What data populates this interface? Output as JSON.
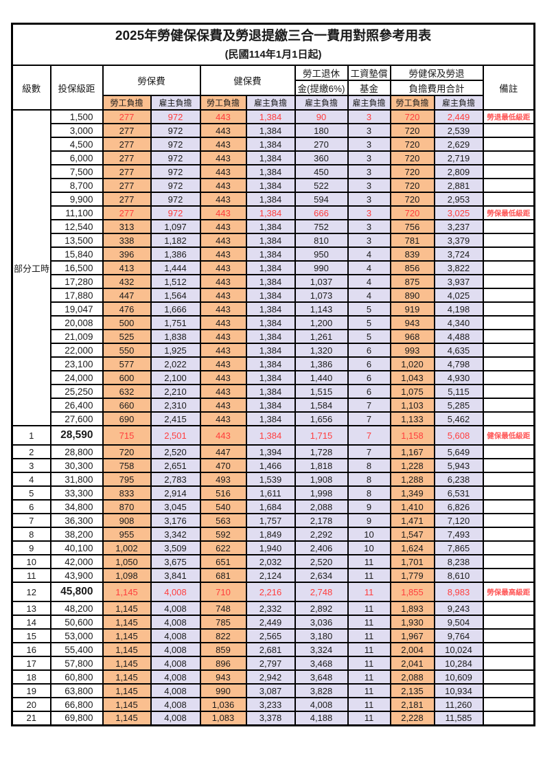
{
  "title": "2025年勞健保保費及勞退提繳三合一費用對照參考用表",
  "subtitle": "(民國114年1月1日起)",
  "header": {
    "level": "級數",
    "bracket": "投保級距",
    "labor_insurance": "勞保費",
    "health_insurance": "健保費",
    "pension_line1": "勞工退休",
    "pension_line2": "金(提繳6%)",
    "wage_fund_line1": "工資墊償",
    "wage_fund_line2": "基金",
    "total_line1": "勞健保及勞退",
    "total_line2": "負擔費用合計",
    "remark": "備註",
    "worker": "勞工負擔",
    "employer": "雇主負擔"
  },
  "part_time_label": "部分工時",
  "colors": {
    "worker_bg": "#FABF8F",
    "employer_bg": "#E0DDF1",
    "value_red": "#FF3D3D",
    "remark_red": "#FF5656",
    "border": "#000000"
  },
  "rows": [
    {
      "section": "part_time",
      "bracket": "1,500",
      "cells": [
        "277",
        "972",
        "443",
        "1,384",
        "90",
        "3",
        "720",
        "2,449"
      ],
      "remark": "勞退最低級距",
      "highlight": true
    },
    {
      "section": "part_time",
      "bracket": "3,000",
      "cells": [
        "277",
        "972",
        "443",
        "1,384",
        "180",
        "3",
        "720",
        "2,539"
      ],
      "remark": ""
    },
    {
      "section": "part_time",
      "bracket": "4,500",
      "cells": [
        "277",
        "972",
        "443",
        "1,384",
        "270",
        "3",
        "720",
        "2,629"
      ],
      "remark": ""
    },
    {
      "section": "part_time",
      "bracket": "6,000",
      "cells": [
        "277",
        "972",
        "443",
        "1,384",
        "360",
        "3",
        "720",
        "2,719"
      ],
      "remark": ""
    },
    {
      "section": "part_time",
      "bracket": "7,500",
      "cells": [
        "277",
        "972",
        "443",
        "1,384",
        "450",
        "3",
        "720",
        "2,809"
      ],
      "remark": ""
    },
    {
      "section": "part_time",
      "bracket": "8,700",
      "cells": [
        "277",
        "972",
        "443",
        "1,384",
        "522",
        "3",
        "720",
        "2,881"
      ],
      "remark": ""
    },
    {
      "section": "part_time",
      "bracket": "9,900",
      "cells": [
        "277",
        "972",
        "443",
        "1,384",
        "594",
        "3",
        "720",
        "2,953"
      ],
      "remark": ""
    },
    {
      "section": "part_time",
      "bracket": "11,100",
      "cells": [
        "277",
        "972",
        "443",
        "1,384",
        "666",
        "3",
        "720",
        "3,025"
      ],
      "remark": "勞保最低級距",
      "highlight": true
    },
    {
      "section": "part_time",
      "bracket": "12,540",
      "cells": [
        "313",
        "1,097",
        "443",
        "1,384",
        "752",
        "3",
        "756",
        "3,237"
      ],
      "remark": ""
    },
    {
      "section": "part_time",
      "bracket": "13,500",
      "cells": [
        "338",
        "1,182",
        "443",
        "1,384",
        "810",
        "3",
        "781",
        "3,379"
      ],
      "remark": ""
    },
    {
      "section": "part_time",
      "bracket": "15,840",
      "cells": [
        "396",
        "1,386",
        "443",
        "1,384",
        "950",
        "4",
        "839",
        "3,724"
      ],
      "remark": ""
    },
    {
      "section": "part_time",
      "bracket": "16,500",
      "cells": [
        "413",
        "1,444",
        "443",
        "1,384",
        "990",
        "4",
        "856",
        "3,822"
      ],
      "remark": ""
    },
    {
      "section": "part_time",
      "bracket": "17,280",
      "cells": [
        "432",
        "1,512",
        "443",
        "1,384",
        "1,037",
        "4",
        "875",
        "3,937"
      ],
      "remark": ""
    },
    {
      "section": "part_time",
      "bracket": "17,880",
      "cells": [
        "447",
        "1,564",
        "443",
        "1,384",
        "1,073",
        "4",
        "890",
        "4,025"
      ],
      "remark": ""
    },
    {
      "section": "part_time",
      "bracket": "19,047",
      "cells": [
        "476",
        "1,666",
        "443",
        "1,384",
        "1,143",
        "5",
        "919",
        "4,198"
      ],
      "remark": ""
    },
    {
      "section": "part_time",
      "bracket": "20,008",
      "cells": [
        "500",
        "1,751",
        "443",
        "1,384",
        "1,200",
        "5",
        "943",
        "4,340"
      ],
      "remark": ""
    },
    {
      "section": "part_time",
      "bracket": "21,009",
      "cells": [
        "525",
        "1,838",
        "443",
        "1,384",
        "1,261",
        "5",
        "968",
        "4,488"
      ],
      "remark": ""
    },
    {
      "section": "part_time",
      "bracket": "22,000",
      "cells": [
        "550",
        "1,925",
        "443",
        "1,384",
        "1,320",
        "6",
        "993",
        "4,635"
      ],
      "remark": ""
    },
    {
      "section": "part_time",
      "bracket": "23,100",
      "cells": [
        "577",
        "2,022",
        "443",
        "1,384",
        "1,386",
        "6",
        "1,020",
        "4,798"
      ],
      "remark": ""
    },
    {
      "section": "part_time",
      "bracket": "24,000",
      "cells": [
        "600",
        "2,100",
        "443",
        "1,384",
        "1,440",
        "6",
        "1,043",
        "4,930"
      ],
      "remark": ""
    },
    {
      "section": "part_time",
      "bracket": "25,250",
      "cells": [
        "632",
        "2,210",
        "443",
        "1,384",
        "1,515",
        "6",
        "1,075",
        "5,115"
      ],
      "remark": ""
    },
    {
      "section": "part_time",
      "bracket": "26,400",
      "cells": [
        "660",
        "2,310",
        "443",
        "1,384",
        "1,584",
        "7",
        "1,103",
        "5,285"
      ],
      "remark": ""
    },
    {
      "section": "part_time",
      "bracket": "27,600",
      "cells": [
        "690",
        "2,415",
        "443",
        "1,384",
        "1,656",
        "7",
        "1,133",
        "5,462"
      ],
      "remark": ""
    },
    {
      "level": "1",
      "bracket": "28,590",
      "cells": [
        "715",
        "2,501",
        "443",
        "1,384",
        "1,715",
        "7",
        "1,158",
        "5,608"
      ],
      "remark": "健保最低級距",
      "highlight": true,
      "bold": true
    },
    {
      "level": "2",
      "bracket": "28,800",
      "cells": [
        "720",
        "2,520",
        "447",
        "1,394",
        "1,728",
        "7",
        "1,167",
        "5,649"
      ],
      "remark": ""
    },
    {
      "level": "3",
      "bracket": "30,300",
      "cells": [
        "758",
        "2,651",
        "470",
        "1,466",
        "1,818",
        "8",
        "1,228",
        "5,943"
      ],
      "remark": ""
    },
    {
      "level": "4",
      "bracket": "31,800",
      "cells": [
        "795",
        "2,783",
        "493",
        "1,539",
        "1,908",
        "8",
        "1,288",
        "6,238"
      ],
      "remark": ""
    },
    {
      "level": "5",
      "bracket": "33,300",
      "cells": [
        "833",
        "2,914",
        "516",
        "1,611",
        "1,998",
        "8",
        "1,349",
        "6,531"
      ],
      "remark": ""
    },
    {
      "level": "6",
      "bracket": "34,800",
      "cells": [
        "870",
        "3,045",
        "540",
        "1,684",
        "2,088",
        "9",
        "1,410",
        "6,826"
      ],
      "remark": ""
    },
    {
      "level": "7",
      "bracket": "36,300",
      "cells": [
        "908",
        "3,176",
        "563",
        "1,757",
        "2,178",
        "9",
        "1,471",
        "7,120"
      ],
      "remark": ""
    },
    {
      "level": "8",
      "bracket": "38,200",
      "cells": [
        "955",
        "3,342",
        "592",
        "1,849",
        "2,292",
        "10",
        "1,547",
        "7,493"
      ],
      "remark": ""
    },
    {
      "level": "9",
      "bracket": "40,100",
      "cells": [
        "1,002",
        "3,509",
        "622",
        "1,940",
        "2,406",
        "10",
        "1,624",
        "7,865"
      ],
      "remark": ""
    },
    {
      "level": "10",
      "bracket": "42,000",
      "cells": [
        "1,050",
        "3,675",
        "651",
        "2,032",
        "2,520",
        "11",
        "1,701",
        "8,238"
      ],
      "remark": ""
    },
    {
      "level": "11",
      "bracket": "43,900",
      "cells": [
        "1,098",
        "3,841",
        "681",
        "2,124",
        "2,634",
        "11",
        "1,779",
        "8,610"
      ],
      "remark": ""
    },
    {
      "level": "12",
      "bracket": "45,800",
      "cells": [
        "1,145",
        "4,008",
        "710",
        "2,216",
        "2,748",
        "11",
        "1,855",
        "8,983"
      ],
      "remark": "勞保最高級距",
      "highlight": true,
      "bold": true
    },
    {
      "level": "13",
      "bracket": "48,200",
      "cells": [
        "1,145",
        "4,008",
        "748",
        "2,332",
        "2,892",
        "11",
        "1,893",
        "9,243"
      ],
      "remark": ""
    },
    {
      "level": "14",
      "bracket": "50,600",
      "cells": [
        "1,145",
        "4,008",
        "785",
        "2,449",
        "3,036",
        "11",
        "1,930",
        "9,504"
      ],
      "remark": ""
    },
    {
      "level": "15",
      "bracket": "53,000",
      "cells": [
        "1,145",
        "4,008",
        "822",
        "2,565",
        "3,180",
        "11",
        "1,967",
        "9,764"
      ],
      "remark": ""
    },
    {
      "level": "16",
      "bracket": "55,400",
      "cells": [
        "1,145",
        "4,008",
        "859",
        "2,681",
        "3,324",
        "11",
        "2,004",
        "10,024"
      ],
      "remark": ""
    },
    {
      "level": "17",
      "bracket": "57,800",
      "cells": [
        "1,145",
        "4,008",
        "896",
        "2,797",
        "3,468",
        "11",
        "2,041",
        "10,284"
      ],
      "remark": ""
    },
    {
      "level": "18",
      "bracket": "60,800",
      "cells": [
        "1,145",
        "4,008",
        "943",
        "2,942",
        "3,648",
        "11",
        "2,088",
        "10,609"
      ],
      "remark": ""
    },
    {
      "level": "19",
      "bracket": "63,800",
      "cells": [
        "1,145",
        "4,008",
        "990",
        "3,087",
        "3,828",
        "11",
        "2,135",
        "10,934"
      ],
      "remark": ""
    },
    {
      "level": "20",
      "bracket": "66,800",
      "cells": [
        "1,145",
        "4,008",
        "1,036",
        "3,233",
        "4,008",
        "11",
        "2,181",
        "11,260"
      ],
      "remark": ""
    },
    {
      "level": "21",
      "bracket": "69,800",
      "cells": [
        "1,145",
        "4,008",
        "1,083",
        "3,378",
        "4,188",
        "11",
        "2,228",
        "11,585"
      ],
      "remark": ""
    }
  ]
}
